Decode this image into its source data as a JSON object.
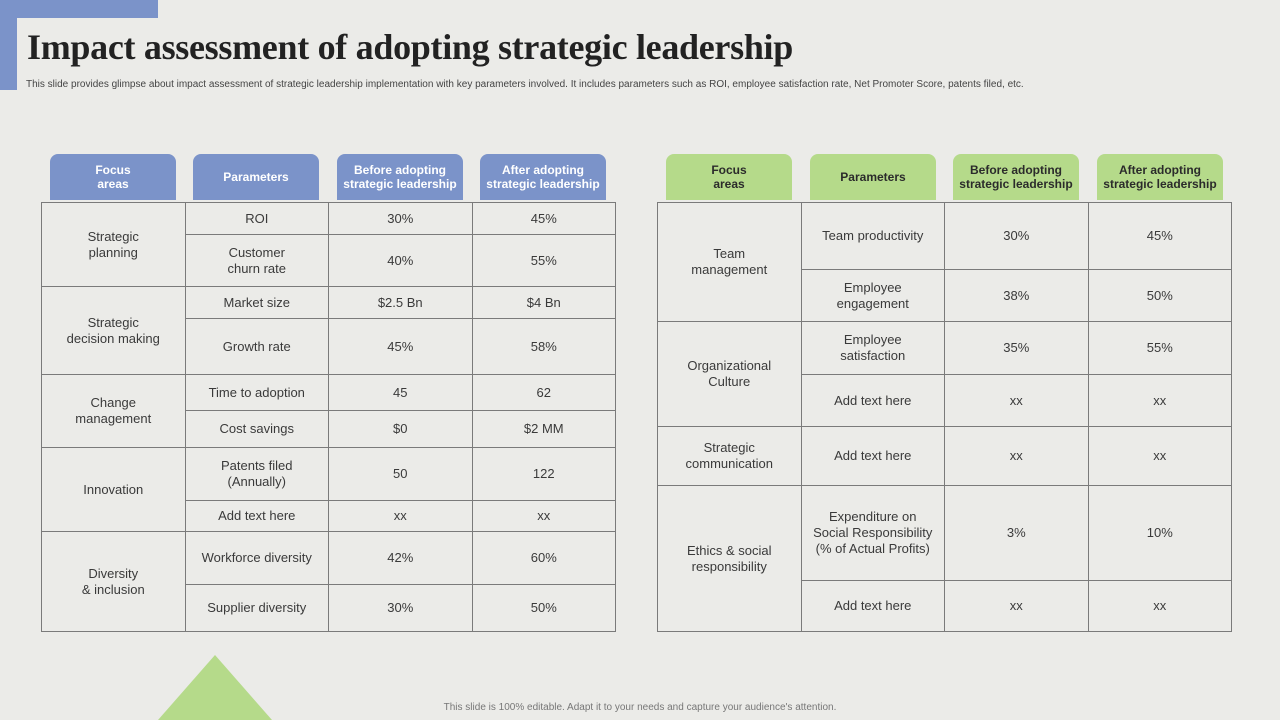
{
  "title": "Impact assessment of adopting strategic leadership",
  "subtitle": "This slide provides glimpse about impact assessment of strategic leadership implementation  with key parameters involved. It includes parameters such as ROI,  employee satisfaction rate, Net Promoter Score, patents filed, etc.",
  "headers": [
    "Focus\nareas",
    "Parameters",
    "Before adopting\nstrategic leadership",
    "After adopting\nstrategic leadership"
  ],
  "colors": {
    "blue": "#7b93c9",
    "green": "#b5da8a"
  },
  "left_table": [
    {
      "area": "Strategic\nplanning",
      "rows": [
        [
          "ROI",
          "30%",
          "45%"
        ],
        [
          "Customer\nchurn rate",
          "40%",
          "55%"
        ]
      ]
    },
    {
      "area": "Strategic\ndecision making",
      "rows": [
        [
          "Market size",
          "$2.5 Bn",
          "$4 Bn"
        ],
        [
          "Growth rate",
          "45%",
          "58%"
        ]
      ]
    },
    {
      "area": "Change\nmanagement",
      "rows": [
        [
          "Time to adoption",
          "45",
          "62"
        ],
        [
          "Cost savings",
          "$0",
          "$2 MM"
        ]
      ]
    },
    {
      "area": "Innovation",
      "rows": [
        [
          "Patents filed\n(Annually)",
          "50",
          "122"
        ],
        [
          "Add text here",
          "xx",
          "xx"
        ]
      ]
    },
    {
      "area": "Diversity\n& inclusion",
      "rows": [
        [
          "Workforce diversity",
          "42%",
          "60%"
        ],
        [
          "Supplier diversity",
          "30%",
          "50%"
        ]
      ]
    }
  ],
  "right_table": [
    {
      "area": "Team\nmanagement",
      "rows": [
        [
          "Team  productivity",
          "30%",
          "45%"
        ],
        [
          "Employee\nengagement",
          "38%",
          "50%"
        ]
      ]
    },
    {
      "area": "Organizational\nCulture",
      "rows": [
        [
          "Employee\nsatisfaction",
          "35%",
          "55%"
        ],
        [
          "Add text here",
          "xx",
          "xx"
        ]
      ]
    },
    {
      "area": "Strategic\ncommunication",
      "rows": [
        [
          "Add text here",
          "xx",
          "xx"
        ]
      ]
    },
    {
      "area": "Ethics & social\nresponsibility",
      "rows": [
        [
          "Expenditure on\nSocial Responsibility\n(% of Actual Profits)",
          "3%",
          "10%"
        ],
        [
          "Add text here",
          "xx",
          "xx"
        ]
      ]
    }
  ],
  "footer": "This slide is 100% editable. Adapt it to your needs and capture your audience's attention."
}
